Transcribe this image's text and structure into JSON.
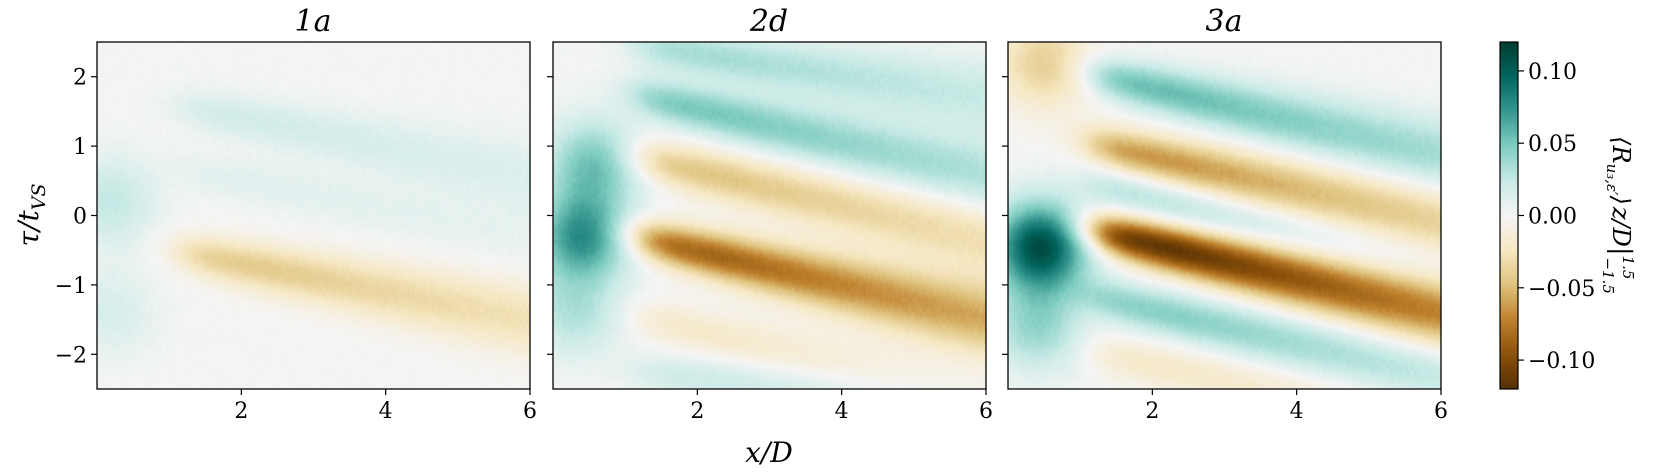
{
  "chart_data": [
    {
      "type": "heatmap",
      "title": "1a",
      "xlim": [
        0,
        6
      ],
      "ylim": [
        -2.5,
        2.5
      ],
      "xticks": [
        "2",
        "4",
        "6"
      ],
      "yticks": [
        "2",
        "1",
        "0",
        "−1",
        "−2"
      ],
      "ridges": [
        {
          "y0": -0.6,
          "slope": -0.2,
          "amp": -0.042
        },
        {
          "y0": 0.6,
          "slope": -0.2,
          "amp": 0.01
        },
        {
          "y0": 1.5,
          "slope": -0.2,
          "amp": 0.018
        }
      ],
      "near_field": [
        {
          "x": 0.2,
          "y": 0.2,
          "amp": 0.025
        },
        {
          "x": 0.2,
          "y": -1.4,
          "amp": 0.015
        }
      ]
    },
    {
      "type": "heatmap",
      "title": "2d",
      "xlim": [
        0,
        6
      ],
      "ylim": [
        -2.5,
        2.5
      ],
      "xticks": [
        "2",
        "4",
        "6"
      ],
      "yticks": [],
      "ridges": [
        {
          "y0": -0.4,
          "slope": -0.24,
          "amp": -0.085
        },
        {
          "y0": 0.75,
          "slope": -0.24,
          "amp": -0.045
        },
        {
          "y0": 1.65,
          "slope": -0.24,
          "amp": 0.05
        },
        {
          "y0": -1.55,
          "slope": -0.24,
          "amp": -0.02
        },
        {
          "y0": 2.4,
          "slope": -0.15,
          "amp": 0.035
        },
        {
          "y0": -2.3,
          "slope": -0.1,
          "amp": 0.02
        }
      ],
      "near_field": [
        {
          "x": 0.4,
          "y": -0.3,
          "amp": 0.075
        },
        {
          "x": 0.55,
          "y": 0.75,
          "amp": 0.05
        },
        {
          "x": 0.3,
          "y": -1.4,
          "amp": 0.03
        }
      ]
    },
    {
      "type": "heatmap",
      "title": "3a",
      "xlim": [
        0,
        6
      ],
      "ylim": [
        -2.5,
        2.5
      ],
      "xticks": [
        "2",
        "4",
        "6"
      ],
      "yticks": [],
      "ridges": [
        {
          "y0": -0.3,
          "slope": -0.24,
          "amp": -0.115
        },
        {
          "y0": 0.95,
          "slope": -0.24,
          "amp": -0.065
        },
        {
          "y0": 1.95,
          "slope": -0.24,
          "amp": 0.055
        },
        {
          "y0": -1.25,
          "slope": -0.24,
          "amp": 0.045
        },
        {
          "y0": 0.35,
          "slope": -0.24,
          "amp": 0.03
        },
        {
          "y0": -2.05,
          "slope": -0.2,
          "amp": -0.02
        }
      ],
      "near_field": [
        {
          "x": 0.45,
          "y": -0.45,
          "amp": 0.11
        },
        {
          "x": 0.5,
          "y": 2.2,
          "amp": -0.04
        },
        {
          "x": 0.4,
          "y": -1.6,
          "amp": 0.04
        }
      ]
    }
  ],
  "xlabel": "x/D",
  "ylabel": "τ/t",
  "ylabel_sub": "VS",
  "colorbar": {
    "label": "⟨R",
    "label_sub": "u₃,ε′",
    "label_mid": "⟩",
    "label_rest": "z/D",
    "label_range_top": "1.5",
    "label_range_bottom": "−1.5",
    "vmin": -0.12,
    "vmax": 0.12,
    "ticks": [
      "0.10",
      "0.05",
      "0.00",
      "−0.05",
      "−0.10"
    ],
    "tick_values": [
      0.1,
      0.05,
      0.0,
      -0.05,
      -0.1
    ],
    "colormap": "BrBG",
    "stops": [
      "#543005",
      "#8c510a",
      "#bf812d",
      "#dfc27d",
      "#f6e8c3",
      "#f5f5f5",
      "#c7eae5",
      "#80cdc1",
      "#35978f",
      "#01665e",
      "#003c30"
    ]
  }
}
